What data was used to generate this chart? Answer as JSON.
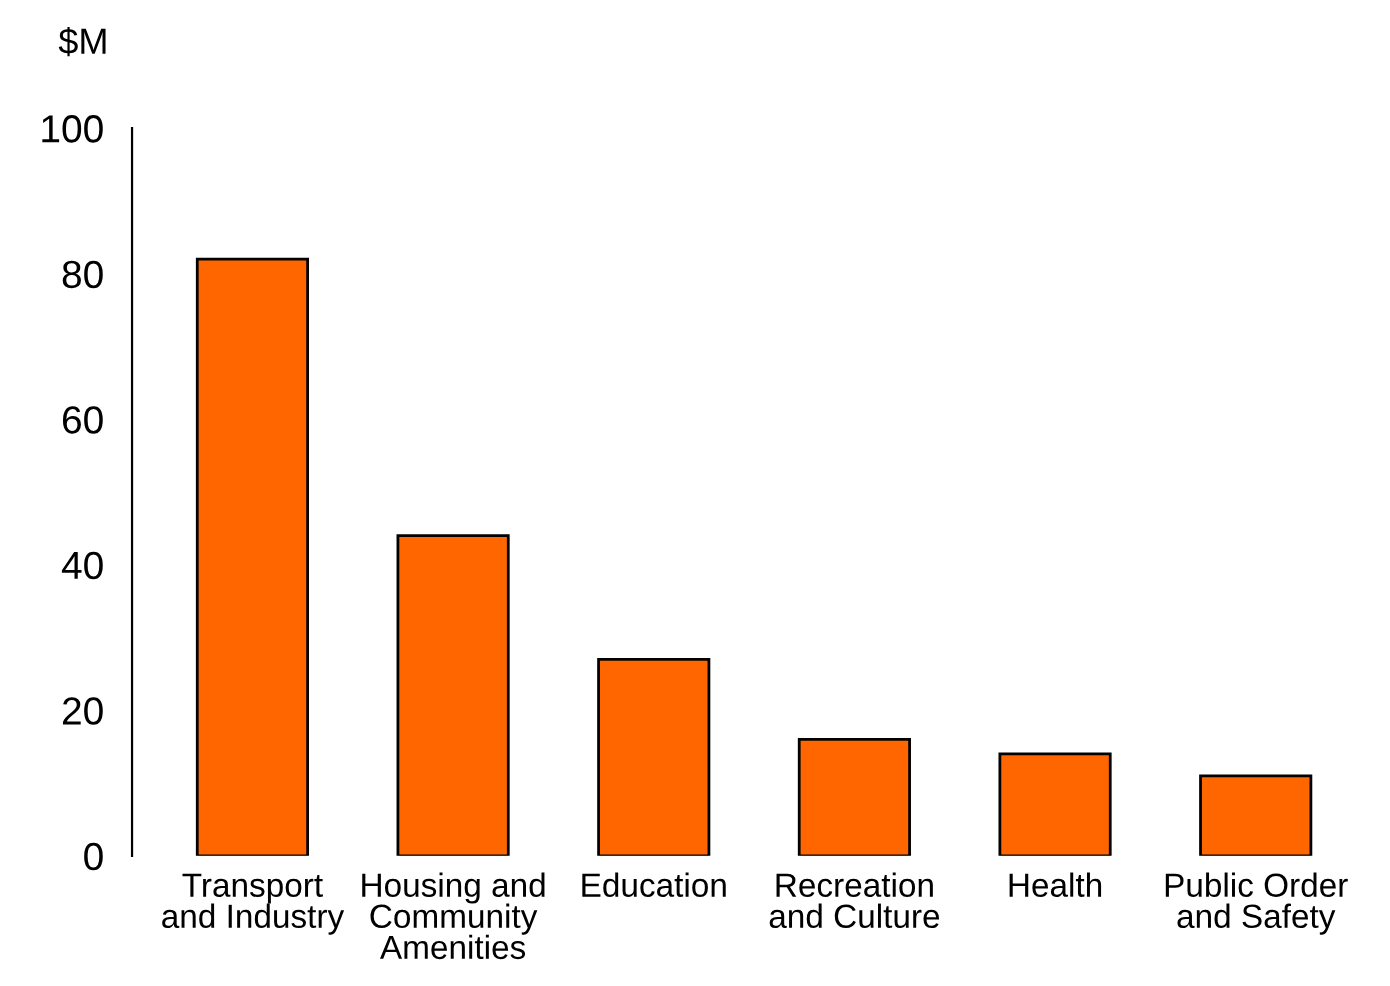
{
  "chart_data": {
    "type": "bar",
    "ylabel": "$M",
    "categories": [
      "Transport\nand Industry",
      "Housing and\nCommunity\nAmenities",
      "Education",
      "Recreation\nand Culture",
      "Health",
      "Public Order\nand Safety"
    ],
    "values": [
      82,
      44,
      27,
      16,
      14,
      11
    ],
    "color": "#ff6600",
    "ylim": [
      0,
      100
    ],
    "yticks": [
      0,
      20,
      40,
      60,
      80,
      100
    ],
    "grid": false,
    "legend": false
  }
}
